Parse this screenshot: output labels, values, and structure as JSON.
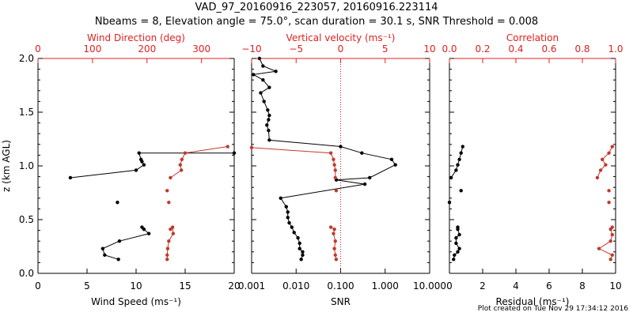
{
  "title_line1": "VAD_97_20160916_223057, 20160916.223114",
  "title_line2": "Nbeams = 8, Elevation angle = 75.0°, scan duration = 30.1 s, SNR Threshold = 0.008",
  "footer": "Plot created on Tue Nov 29 17:34:12 2016",
  "colors": {
    "black": "#000000",
    "red": "#c0392b",
    "axis_red": "#e02020"
  },
  "chart_data": [
    {
      "type": "line",
      "panel": "wind",
      "ylabel": "z (km AGL)",
      "ylim": [
        0,
        2
      ],
      "yticks": [
        "0.0",
        "0.5",
        "1.0",
        "1.5",
        "2.0"
      ],
      "series": [
        {
          "name": "Wind Speed",
          "xlabel": "Wind Speed (ms⁻¹)",
          "xlim": [
            0,
            20
          ],
          "xticks": [
            "0",
            "5",
            "10",
            "15",
            "20"
          ],
          "color": "#000000",
          "segments": [
            [
              [
                8.1,
                0.66
              ]
            ],
            [
              [
                8.2,
                0.13
              ],
              [
                6.8,
                0.17
              ],
              [
                6.6,
                0.23
              ],
              [
                8.3,
                0.3
              ],
              [
                11.3,
                0.37
              ],
              [
                10.8,
                0.41
              ],
              [
                10.6,
                0.43
              ]
            ],
            [
              [
                3.3,
                0.89
              ],
              [
                10.0,
                0.96
              ],
              [
                10.8,
                1.01
              ],
              [
                10.6,
                1.04
              ],
              [
                10.5,
                1.06
              ],
              [
                10.3,
                1.12
              ],
              [
                20.0,
                1.12
              ]
            ]
          ]
        },
        {
          "name": "Wind Direction",
          "xlabel": "Wind Direction (deg)",
          "xlim": [
            0,
            360
          ],
          "xticks": [
            "0",
            "100",
            "200",
            "300"
          ],
          "color": "#c0392b",
          "segments": [
            [
              [
                240,
                0.66
              ]
            ],
            [
              [
                237,
                0.77
              ]
            ],
            [
              [
                237,
                0.13
              ],
              [
                237,
                0.17
              ],
              [
                238,
                0.23
              ],
              [
                240,
                0.3
              ],
              [
                248,
                0.37
              ],
              [
                247,
                0.43
              ],
              [
                243,
                0.41
              ]
            ],
            [
              [
                243,
                0.89
              ],
              [
                263,
                0.96
              ],
              [
                261,
                1.01
              ],
              [
                264,
                1.06
              ],
              [
                270,
                1.12
              ],
              [
                348,
                1.18
              ]
            ]
          ]
        }
      ]
    },
    {
      "type": "line",
      "panel": "snr",
      "series": [
        {
          "name": "SNR",
          "xlabel": "SNR",
          "xscale": "log",
          "xlim": [
            0.001,
            10
          ],
          "xticks": [
            "0.001",
            "0.010",
            "0.100",
            "1.000",
            "10.000"
          ],
          "color": "#000000",
          "segments": [
            [
              [
                0.013,
                0.13
              ],
              [
                0.014,
                0.17
              ],
              [
                0.014,
                0.2
              ],
              [
                0.012,
                0.23
              ],
              [
                0.012,
                0.28
              ],
              [
                0.011,
                0.33
              ],
              [
                0.009,
                0.38
              ],
              [
                0.008,
                0.43
              ],
              [
                0.007,
                0.47
              ],
              [
                0.0065,
                0.52
              ],
              [
                0.0065,
                0.57
              ],
              [
                0.006,
                0.62
              ],
              [
                0.0045,
                0.7
              ],
              [
                0.35,
                0.83
              ],
              [
                0.08,
                0.87
              ],
              [
                0.45,
                0.89
              ],
              [
                1.7,
                1.01
              ],
              [
                1.4,
                1.06
              ],
              [
                0.3,
                1.12
              ],
              [
                0.1,
                1.18
              ],
              [
                0.0025,
                1.24
              ],
              [
                0.0024,
                1.33
              ],
              [
                0.0022,
                1.38
              ],
              [
                0.0024,
                1.43
              ],
              [
                0.0025,
                1.47
              ],
              [
                0.0023,
                1.52
              ],
              [
                0.0019,
                1.6
              ],
              [
                0.0016,
                1.68
              ],
              [
                0.0025,
                1.73
              ],
              [
                0.0018,
                1.8
              ],
              [
                0.0011,
                1.85
              ],
              [
                0.0035,
                1.88
              ],
              [
                0.0018,
                1.93
              ],
              [
                0.0015,
                2.0
              ]
            ]
          ]
        },
        {
          "name": "Vertical velocity",
          "xlabel": "Vertical velocity (ms⁻¹)",
          "xlim": [
            -10,
            10
          ],
          "xticks": [
            "−10",
            "−5",
            "0",
            "5",
            "10"
          ],
          "zero_line": 0,
          "color": "#c0392b",
          "segments": [
            [
              [
                -10,
                1.17
              ],
              [
                -1.1,
                1.12
              ],
              [
                -0.8,
                1.06
              ],
              [
                -0.7,
                1.01
              ],
              [
                -0.6,
                0.96
              ],
              [
                -0.6,
                0.89
              ]
            ],
            [
              [
                -0.5,
                0.77
              ]
            ],
            [
              [
                -0.5,
                0.13
              ],
              [
                -0.6,
                0.17
              ],
              [
                -0.7,
                0.23
              ],
              [
                -0.6,
                0.3
              ],
              [
                -0.8,
                0.37
              ],
              [
                -0.7,
                0.41
              ],
              [
                -1.1,
                0.43
              ]
            ]
          ]
        }
      ]
    },
    {
      "type": "line",
      "panel": "residual",
      "series": [
        {
          "name": "Residual",
          "xlabel": "Residual (ms⁻¹)",
          "xlim": [
            0,
            10
          ],
          "xticks": [
            "0",
            "2",
            "4",
            "6",
            "8",
            "10"
          ],
          "color": "#000000",
          "segments": [
            [
              [
                0.25,
                0.13
              ],
              [
                0.3,
                0.17
              ],
              [
                0.5,
                0.2
              ],
              [
                0.6,
                0.23
              ],
              [
                0.4,
                0.28
              ],
              [
                0.4,
                0.33
              ],
              [
                0.6,
                0.36
              ],
              [
                0.5,
                0.41
              ],
              [
                0.5,
                0.43
              ]
            ],
            [
              [
                0.0,
                0.66
              ]
            ],
            [
              [
                0.7,
                0.77
              ]
            ],
            [
              [
                0.1,
                0.89
              ],
              [
                0.4,
                0.96
              ],
              [
                0.5,
                1.01
              ],
              [
                0.6,
                1.06
              ],
              [
                0.7,
                1.12
              ],
              [
                0.8,
                1.18
              ]
            ]
          ]
        },
        {
          "name": "Correlation",
          "xlabel": "Correlation",
          "xlim": [
            0,
            1
          ],
          "xticks": [
            "0.0",
            "0.2",
            "0.4",
            "0.6",
            "0.8",
            "1.0"
          ],
          "color": "#c0392b",
          "segments": [
            [
              [
                0.97,
                0.13
              ],
              [
                0.98,
                0.17
              ],
              [
                0.9,
                0.23
              ],
              [
                0.97,
                0.3
              ],
              [
                0.98,
                0.36
              ],
              [
                0.97,
                0.41
              ],
              [
                0.98,
                0.43
              ]
            ],
            [
              [
                0.96,
                0.66
              ]
            ],
            [
              [
                0.96,
                0.77
              ]
            ],
            [
              [
                0.89,
                0.89
              ],
              [
                0.91,
                0.96
              ],
              [
                0.94,
                1.01
              ],
              [
                0.92,
                1.06
              ],
              [
                0.96,
                1.12
              ],
              [
                0.98,
                1.18
              ]
            ]
          ]
        }
      ]
    }
  ]
}
